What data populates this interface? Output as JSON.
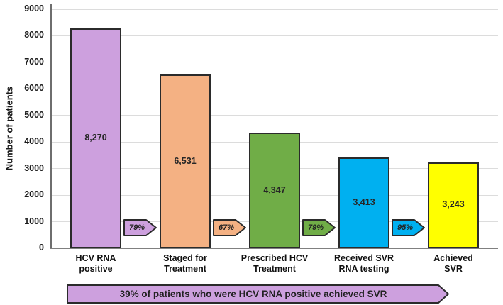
{
  "chart_data": {
    "type": "bar",
    "title": "",
    "xlabel": "",
    "ylabel": "Number of patients",
    "ylim": [
      0,
      9000
    ],
    "ytick_step": 1000,
    "grid": true,
    "legend": "none",
    "categories": [
      "HCV RNA\npositive",
      "Staged for\nTreatment",
      "Prescribed HCV\nTreatment",
      "Received SVR\nRNA testing",
      "Achieved\nSVR"
    ],
    "values": [
      8270,
      6531,
      4347,
      3413,
      3243
    ],
    "value_labels": [
      "8,270",
      "6,531",
      "4,347",
      "3,413",
      "3,243"
    ],
    "bar_colors": [
      "#CDA0DE",
      "#F4B183",
      "#70AD47",
      "#00B0F0",
      "#FFFF00"
    ],
    "bar_border_color": "#2b2b2b",
    "transition_arrows": [
      {
        "label": "79%",
        "color": "#CDA0DE"
      },
      {
        "label": "67%",
        "color": "#F4B183"
      },
      {
        "label": "79%",
        "color": "#70AD47"
      },
      {
        "label": "95%",
        "color": "#00B0F0"
      }
    ],
    "banner": {
      "text": "39% of patients who were HCV RNA positive achieved SVR",
      "color": "#CDA0DE",
      "border_color": "#2b2b2b"
    }
  }
}
